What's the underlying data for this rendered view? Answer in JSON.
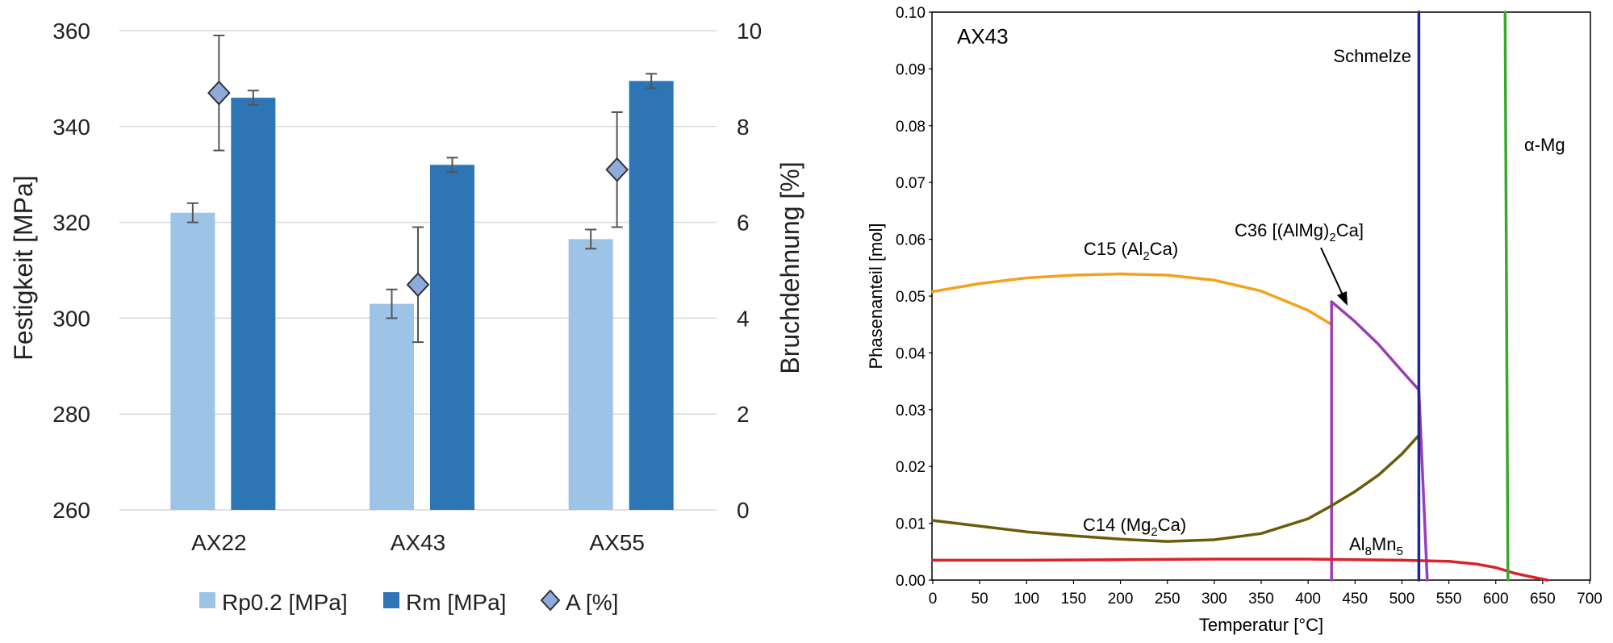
{
  "chart_data": [
    {
      "type": "bar",
      "categories": [
        "AX22",
        "AX43",
        "AX55"
      ],
      "series": [
        {
          "name": "Rp0.2 [MPa]",
          "axis": "left",
          "values": [
            322,
            303,
            316.5
          ],
          "errors": [
            2,
            3,
            2
          ],
          "color": "#9dc3e6"
        },
        {
          "name": "Rm [MPa]",
          "axis": "left",
          "values": [
            346,
            332,
            349.5
          ],
          "errors": [
            1.5,
            1.5,
            1.5
          ],
          "color": "#2e75b6"
        },
        {
          "name": "A [%]",
          "axis": "right",
          "marker": "diamond",
          "values": [
            8.7,
            4.7,
            7.1
          ],
          "errors": [
            1.2,
            1.2,
            1.2
          ],
          "color": "#8faadc"
        }
      ],
      "ylabel": "Festigkeit [MPa]",
      "ylim": [
        260,
        360
      ],
      "yticks": [
        "260",
        "280",
        "300",
        "320",
        "340",
        "360"
      ],
      "y2label": "Bruchdehnung [%]",
      "y2lim": [
        0,
        10
      ],
      "y2ticks": [
        "0",
        "2",
        "4",
        "6",
        "8",
        "10"
      ],
      "grid": true,
      "legend_position": "bottom"
    },
    {
      "type": "line",
      "annotation_label": "AX43",
      "xlabel": "Temperatur [°C]",
      "ylabel": "Phasenanteil [mol]",
      "xlim": [
        0,
        700
      ],
      "ylim": [
        0,
        0.1
      ],
      "xticks": [
        "0",
        "50",
        "100",
        "150",
        "200",
        "250",
        "300",
        "350",
        "400",
        "450",
        "500",
        "550",
        "600",
        "650",
        "700"
      ],
      "yticks": [
        "0.00",
        "0.01",
        "0.02",
        "0.03",
        "0.04",
        "0.05",
        "0.06",
        "0.07",
        "0.08",
        "0.09",
        "0.10"
      ],
      "series": [
        {
          "id": "c15",
          "color": "#f5a21b",
          "x": [
            0,
            50,
            100,
            150,
            200,
            250,
            300,
            350,
            400,
            425
          ],
          "y": [
            0.0508,
            0.0522,
            0.0532,
            0.0537,
            0.0539,
            0.0537,
            0.0528,
            0.0509,
            0.0475,
            0.045
          ]
        },
        {
          "id": "c36",
          "color": "#9b3db4",
          "x": [
            425,
            425,
            450,
            475,
            500,
            518,
            518,
            527
          ],
          "y": [
            0.0,
            0.049,
            0.0455,
            0.0415,
            0.0368,
            0.0335,
            0.0335,
            0.0
          ]
        },
        {
          "id": "c14",
          "color": "#6b5b0a",
          "x": [
            0,
            50,
            100,
            150,
            200,
            250,
            300,
            350,
            400,
            425,
            450,
            475,
            500,
            518
          ],
          "y": [
            0.0105,
            0.0095,
            0.0085,
            0.0078,
            0.0072,
            0.0068,
            0.0071,
            0.0082,
            0.0108,
            0.0131,
            0.0156,
            0.0185,
            0.0222,
            0.0255
          ]
        },
        {
          "id": "al8mn5",
          "color": "#d9222a",
          "x": [
            0,
            100,
            200,
            300,
            400,
            500,
            550,
            580,
            600,
            620,
            640,
            655
          ],
          "y": [
            0.0035,
            0.0035,
            0.0036,
            0.0037,
            0.0037,
            0.0035,
            0.0033,
            0.0028,
            0.0022,
            0.0012,
            0.0005,
            0.0
          ]
        },
        {
          "id": "schmelze",
          "color": "#1a2a8c",
          "x": [
            518,
            518
          ],
          "y": [
            0.0,
            0.1
          ]
        },
        {
          "id": "alpha-mg",
          "color": "#3aa82e",
          "x": [
            613,
            610
          ],
          "y": [
            0.0,
            0.1
          ]
        }
      ],
      "labels": {
        "schmelze": "Schmelze",
        "alpha_mg": "α-Mg",
        "c15_main": "C15 (Al",
        "c15_sub": "2",
        "c15_end": "Ca)",
        "c36_main": "C36 [(AlMg)",
        "c36_sub": "2",
        "c36_end": "Ca]",
        "c14_main": "C14 (Mg",
        "c14_sub": "2",
        "c14_end": "Ca)",
        "al8mn5_a": "Al",
        "al8mn5_s1": "8",
        "al8mn5_b": "Mn",
        "al8mn5_s2": "5"
      }
    }
  ]
}
